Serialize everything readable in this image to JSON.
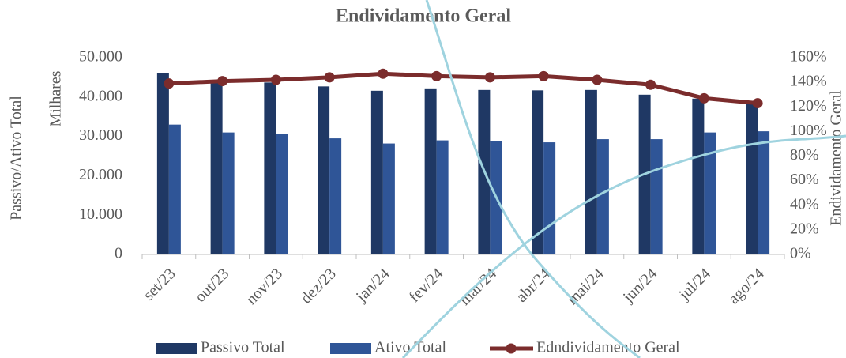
{
  "chart_data": {
    "type": "bar_line",
    "title": "Endividamento Geral",
    "y_label": "Passivo/Ativo Total",
    "y_unit_label": "Milhares",
    "y2_label": "Endividamento Geral",
    "categories": [
      "set/23",
      "out/23",
      "nov/23",
      "dez/23",
      "jan/24",
      "fev/24",
      "mar/24",
      "abr/24",
      "mai/24",
      "jun/24",
      "jul/24",
      "ago/24"
    ],
    "series": [
      {
        "name": "Passivo Total",
        "type": "bar",
        "color": "#1f3864",
        "values": [
          46000,
          44000,
          43700,
          42700,
          41600,
          42200,
          41800,
          41700,
          41800,
          40600,
          39600,
          38800
        ]
      },
      {
        "name": "Ativo Total",
        "type": "bar",
        "color": "#2f5597",
        "values": [
          33000,
          31000,
          30700,
          29500,
          28200,
          29000,
          28800,
          28500,
          29300,
          29300,
          31000,
          31300
        ]
      },
      {
        "name": "Edndividamento Geral",
        "type": "line",
        "axis": "y2",
        "color": "#7b2c2c",
        "values": [
          139,
          141,
          142,
          144,
          147,
          145,
          144,
          145,
          142,
          138,
          127,
          123
        ]
      }
    ],
    "ylim": [
      0,
      50000
    ],
    "yticks": [
      0,
      {
        "value": 10000,
        "label": "10.000"
      },
      {
        "value": 20000,
        "label": "20.000"
      },
      {
        "value": 30000,
        "label": "30.000"
      },
      {
        "value": 40000,
        "label": "40.000"
      },
      {
        "value": 50000,
        "label": "50.000"
      }
    ],
    "y2lim": [
      0,
      160
    ],
    "y2ticks": [
      {
        "value": 0,
        "label": "0%"
      },
      {
        "value": 20,
        "label": "20%"
      },
      {
        "value": 40,
        "label": "40%"
      },
      {
        "value": 60,
        "label": "60%"
      },
      {
        "value": 80,
        "label": "80%"
      },
      {
        "value": 100,
        "label": "100%"
      },
      {
        "value": 120,
        "label": "120%"
      },
      {
        "value": 140,
        "label": "140%"
      },
      {
        "value": 160,
        "label": "160%"
      }
    ],
    "grid": false,
    "legend": "bottom"
  }
}
